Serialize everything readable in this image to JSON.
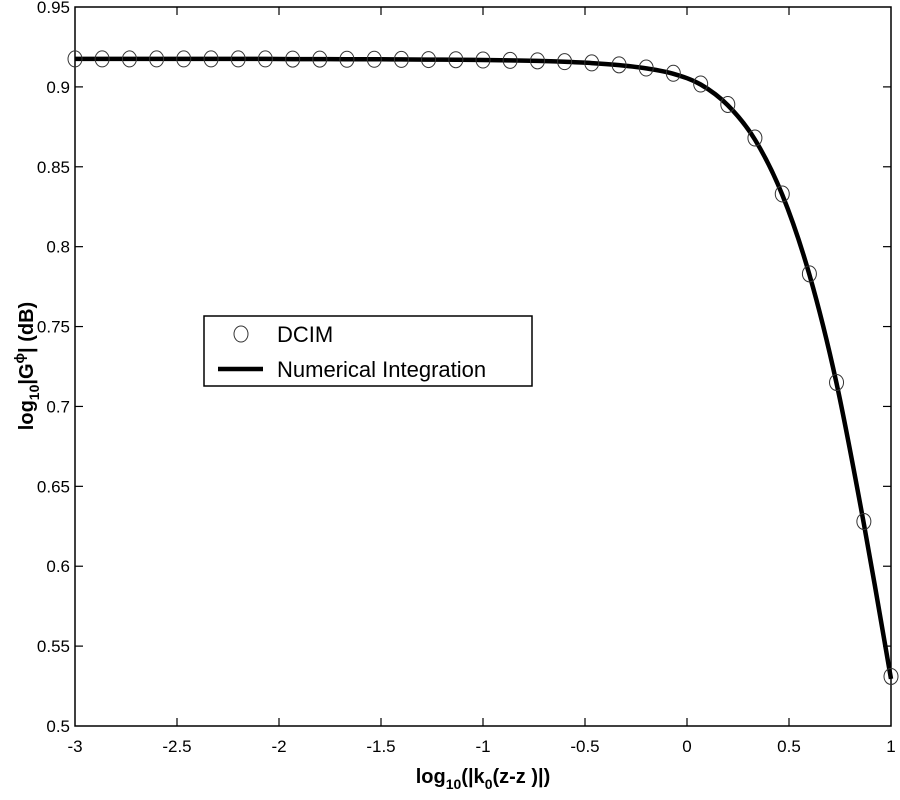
{
  "chart_data": {
    "type": "line",
    "title": "",
    "xlabel": "log10(|k0(z-z )|)",
    "ylabel": "log10|G^phi| (dB)",
    "xlim": [
      -3,
      1
    ],
    "ylim": [
      0.5,
      0.95
    ],
    "grid": false,
    "legend_position": "center-left",
    "x_ticks": [
      -3,
      -2.5,
      -2,
      -1.5,
      -1,
      -0.5,
      0,
      0.5,
      1
    ],
    "x_tick_labels": [
      "-3",
      "-2.5",
      "-2",
      "-1.5",
      "-1",
      "-0.5",
      "0",
      "0.5",
      "1"
    ],
    "y_ticks": [
      0.5,
      0.55,
      0.6,
      0.65,
      0.7,
      0.75,
      0.8,
      0.85,
      0.9,
      0.95
    ],
    "y_tick_labels": [
      "0.5",
      "0.55",
      "0.6",
      "0.65",
      "0.7",
      "0.75",
      "0.8",
      "0.85",
      "0.9",
      "0.95"
    ],
    "x": [
      -3.0,
      -2.867,
      -2.733,
      -2.6,
      -2.467,
      -2.333,
      -2.2,
      -2.067,
      -1.933,
      -1.8,
      -1.667,
      -1.533,
      -1.4,
      -1.267,
      -1.133,
      -1.0,
      -0.867,
      -0.733,
      -0.6,
      -0.467,
      -0.333,
      -0.2,
      -0.067,
      0.067,
      0.2,
      0.333,
      0.467,
      0.6,
      0.733,
      0.867,
      1.0
    ],
    "series": [
      {
        "name": "DCIM",
        "style": "markers",
        "marker": "circle",
        "values": [
          0.9175,
          0.9175,
          0.9175,
          0.9175,
          0.9175,
          0.9175,
          0.9175,
          0.9175,
          0.9174,
          0.9174,
          0.9173,
          0.9173,
          0.9172,
          0.9171,
          0.917,
          0.9168,
          0.9166,
          0.9163,
          0.9158,
          0.915,
          0.9138,
          0.9118,
          0.9085,
          0.9018,
          0.889,
          0.868,
          0.833,
          0.783,
          0.715,
          0.628,
          0.531
        ]
      },
      {
        "name": "Numerical Integration",
        "style": "line",
        "values": [
          0.9175,
          0.9175,
          0.9175,
          0.9175,
          0.9175,
          0.9175,
          0.9175,
          0.9175,
          0.9174,
          0.9174,
          0.9173,
          0.9173,
          0.9172,
          0.9171,
          0.917,
          0.9168,
          0.9166,
          0.9163,
          0.9157,
          0.9149,
          0.9136,
          0.9116,
          0.9082,
          0.9015,
          0.8885,
          0.867,
          0.8325,
          0.7825,
          0.7145,
          0.6265,
          0.5295
        ]
      }
    ]
  },
  "axes": {
    "ylabel_main": "log",
    "ylabel_sub": "10",
    "ylabel_rest1": "|G",
    "ylabel_sup": "ϕ",
    "ylabel_rest2": "| (dB)",
    "xlabel_main": "log",
    "xlabel_sub": "10",
    "xlabel_rest1": "(|k",
    "xlabel_sub2": "0",
    "xlabel_rest2": "(z-z )|)"
  },
  "legend": {
    "items": [
      {
        "label": "DCIM",
        "symbol": "circle-marker"
      },
      {
        "label": "Numerical Integration",
        "symbol": "thick-line"
      }
    ]
  },
  "colors": {
    "line": "#000000",
    "marker": "#333333",
    "background": "#ffffff"
  }
}
